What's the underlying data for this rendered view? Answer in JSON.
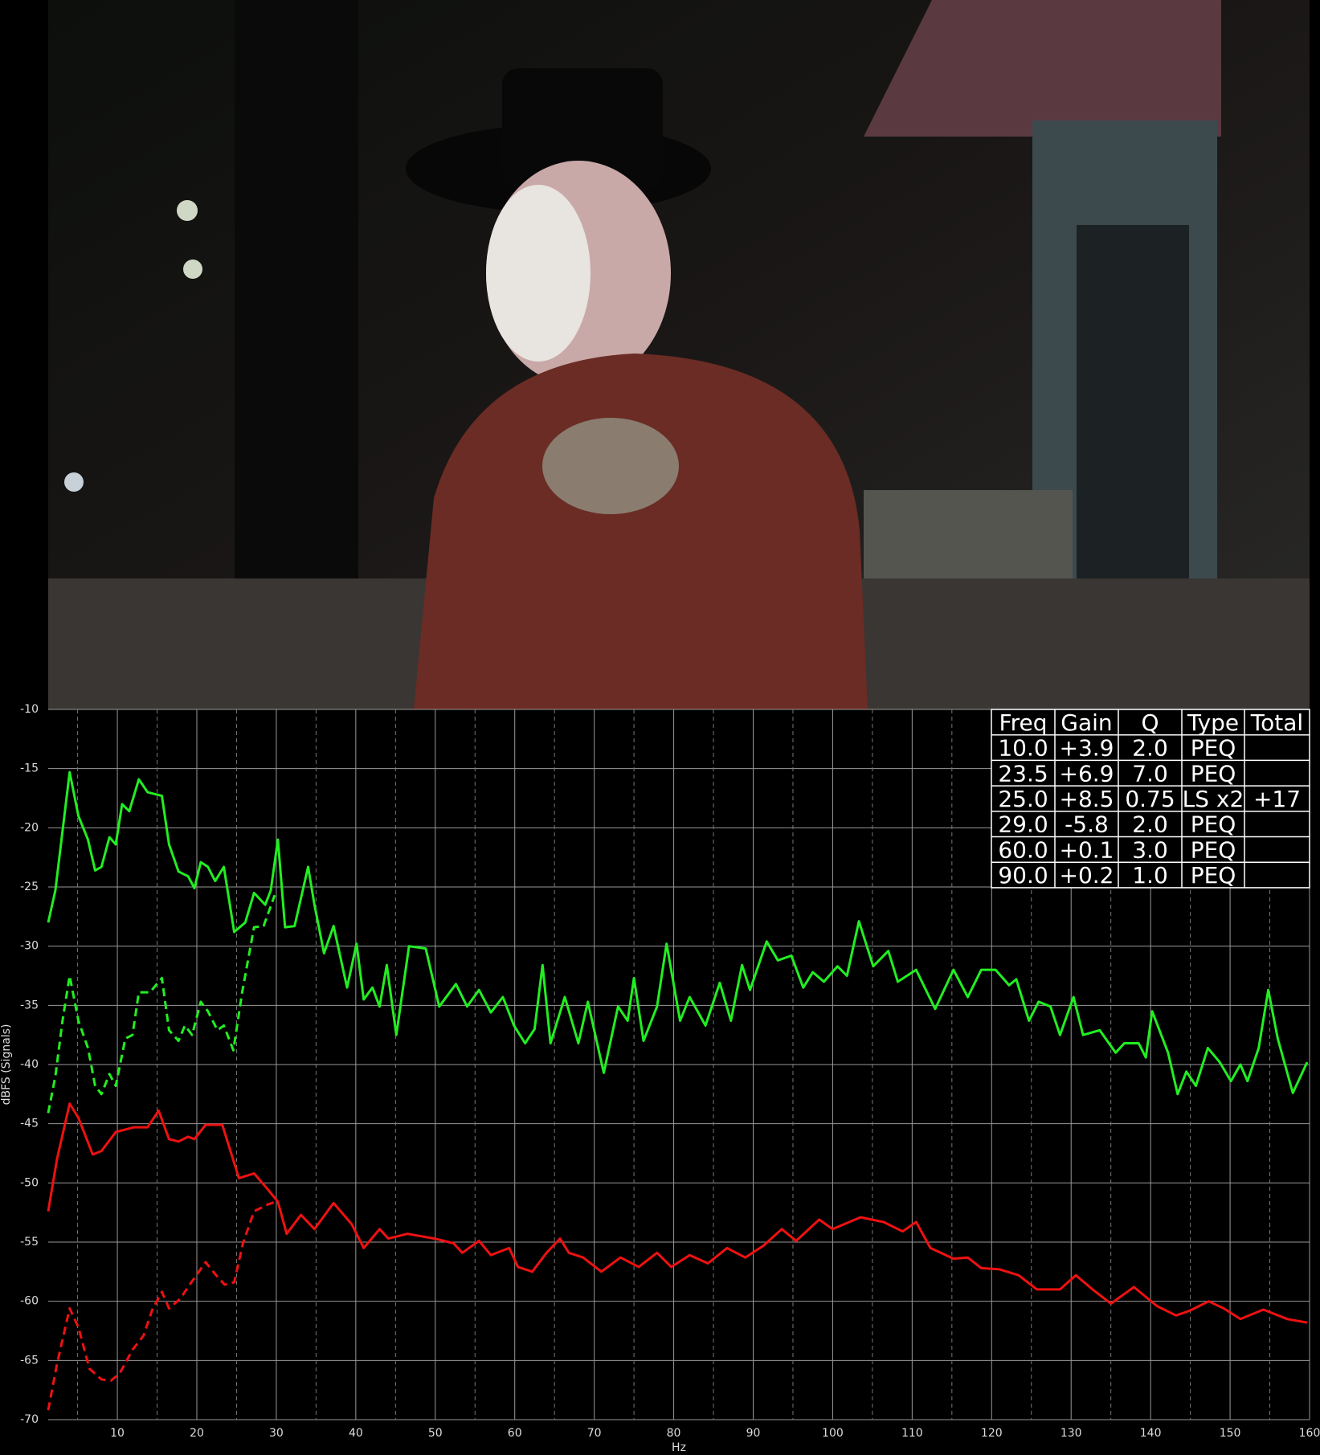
{
  "chart_data": {
    "type": "line",
    "xlabel": "Hz",
    "ylabel": "dBFS (Signals)",
    "xlim": [
      1.3,
      160
    ],
    "ylim": [
      -70,
      -10
    ],
    "xticks": [
      10,
      20,
      30,
      40,
      50,
      60,
      70,
      80,
      90,
      100,
      110,
      120,
      130,
      140,
      150,
      160
    ],
    "xminorticks": [
      5,
      15,
      25,
      35,
      45,
      55,
      65,
      75,
      85,
      95,
      105,
      115,
      125,
      135,
      145,
      155
    ],
    "yticks": [
      -70,
      -65,
      -60,
      -55,
      -50,
      -45,
      -40,
      -35,
      -30,
      -25,
      -20,
      -15,
      -10
    ],
    "grid": true,
    "series": [
      {
        "color": "#22ee22",
        "style": "solid",
        "x": [
          1.3,
          2.2,
          4.0,
          5.1,
          6.3,
          7.2,
          8.0,
          9.0,
          9.8,
          10.6,
          11.5,
          12.7,
          13.8,
          15.6,
          16.5,
          17.7,
          18.9,
          19.7,
          20.5,
          21.4,
          22.3,
          23.4,
          24.7,
          26.1,
          27.2,
          28.6,
          29.3,
          30.2,
          31.1,
          32.3,
          34.0,
          34.8,
          36.0,
          37.2,
          38.9,
          40.1,
          41.0,
          42.1,
          43.0,
          43.9,
          45.1,
          46.7,
          48.8,
          50.5,
          52.6,
          54.0,
          55.5,
          57.0,
          58.5,
          59.9,
          61.3,
          62.5,
          63.5,
          64.5,
          66.3,
          68.0,
          69.2,
          71.2,
          73.0,
          74.2,
          75.0,
          76.2,
          77.9,
          79.1,
          80.8,
          82.0,
          84.0,
          85.8,
          87.2,
          88.6,
          89.6,
          91.7,
          93.1,
          94.8,
          96.3,
          97.5,
          98.9,
          100.6,
          101.8,
          103.3,
          105.1,
          107.0,
          108.2,
          110.5,
          112.9,
          115.2,
          117.0,
          118.7,
          120.5,
          122.2,
          123.1,
          124.7,
          125.9,
          127.4,
          128.6,
          130.3,
          131.5,
          133.6,
          135.6,
          136.7,
          138.5,
          139.4,
          140.2,
          142.2,
          143.4,
          144.5,
          145.7,
          147.2,
          148.7,
          150.1,
          151.3,
          152.2,
          153.6,
          154.8,
          156.0,
          157.9,
          159.7
        ],
        "values": [
          -28,
          -25.3,
          -15.3,
          -19,
          -21,
          -23.6,
          -23.3,
          -20.8,
          -21.4,
          -18,
          -18.6,
          -15.9,
          -17,
          -17.3,
          -21.4,
          -23.7,
          -24.1,
          -25.1,
          -22.9,
          -23.3,
          -24.5,
          -23.3,
          -28.8,
          -28,
          -25.5,
          -26.5,
          -25.3,
          -21,
          -28.4,
          -28.3,
          -23.3,
          -26.5,
          -30.6,
          -28.3,
          -33.5,
          -29.8,
          -34.5,
          -33.5,
          -35.1,
          -31.6,
          -37.5,
          -30,
          -30.2,
          -35.1,
          -33.2,
          -35.1,
          -33.7,
          -35.6,
          -34.3,
          -36.7,
          -38.2,
          -37,
          -31.6,
          -38.2,
          -34.3,
          -38.2,
          -34.7,
          -40.7,
          -35.1,
          -36.3,
          -32.7,
          -38,
          -35.1,
          -29.8,
          -36.3,
          -34.3,
          -36.7,
          -33.1,
          -36.3,
          -31.6,
          -33.7,
          -29.6,
          -31.2,
          -30.8,
          -33.5,
          -32.2,
          -33,
          -31.7,
          -32.5,
          -27.9,
          -31.7,
          -30.4,
          -33,
          -32,
          -35.3,
          -32,
          -34.3,
          -32,
          -32,
          -33.3,
          -32.8,
          -36.3,
          -34.7,
          -35.1,
          -37.5,
          -34.3,
          -37.5,
          -37.1,
          -39,
          -38.2,
          -38.2,
          -39.4,
          -35.5,
          -39,
          -42.5,
          -40.6,
          -41.8,
          -38.6,
          -39.8,
          -41.4,
          -40,
          -41.4,
          -38.6,
          -33.7,
          -37.8,
          -42.4,
          -39.8
        ]
      },
      {
        "color": "#22ee22",
        "style": "dashed",
        "x": [
          1.3,
          2.2,
          3.1,
          4.0,
          5.1,
          6.3,
          7.2,
          8.0,
          9.0,
          9.8,
          11.0,
          11.9,
          12.7,
          14.1,
          15.6,
          16.5,
          17.7,
          18.5,
          19.4,
          20.5,
          21.4,
          22.6,
          23.4,
          24.6,
          25.7,
          27.2,
          28.4,
          29.8
        ],
        "values": [
          -44.1,
          -41,
          -36.3,
          -32.5,
          -36.3,
          -38.6,
          -41.8,
          -42.5,
          -40.8,
          -41.8,
          -37.8,
          -37.5,
          -33.9,
          -33.9,
          -32.7,
          -37.1,
          -38,
          -36.7,
          -37.5,
          -34.7,
          -35.5,
          -37.1,
          -36.7,
          -38.8,
          -33.9,
          -28.4,
          -28.3,
          -25.7
        ]
      },
      {
        "color": "#ee1111",
        "style": "solid",
        "x": [
          1.3,
          2.4,
          4.0,
          5.1,
          6.9,
          8.0,
          9.8,
          12.1,
          13.8,
          15.2,
          16.5,
          17.7,
          18.9,
          19.7,
          21.1,
          23.2,
          25.3,
          27.2,
          29.0,
          30.2,
          31.3,
          33.1,
          34.8,
          37.2,
          39.5,
          41.0,
          43.0,
          44.1,
          46.5,
          49.9,
          52.3,
          53.4,
          55.5,
          57.0,
          59.3,
          60.4,
          62.2,
          64.0,
          65.7,
          66.8,
          68.6,
          70.9,
          73.3,
          75.6,
          77.9,
          79.7,
          82.0,
          84.3,
          86.7,
          89.0,
          91.3,
          93.6,
          95.4,
          98.3,
          100.0,
          103.5,
          106.4,
          108.8,
          110.5,
          112.3,
          115.2,
          117.0,
          118.7,
          121.0,
          123.4,
          125.7,
          128.6,
          130.6,
          132.7,
          135.0,
          137.9,
          140.8,
          143.2,
          144.9,
          147.3,
          149.2,
          151.3,
          154.2,
          157.2,
          159.7
        ],
        "values": [
          -52.4,
          -48,
          -43.3,
          -44.5,
          -47.6,
          -47.3,
          -45.7,
          -45.3,
          -45.3,
          -43.9,
          -46.3,
          -46.5,
          -46.1,
          -46.3,
          -45.1,
          -45.1,
          -49.6,
          -49.2,
          -50.6,
          -51.6,
          -54.3,
          -52.7,
          -53.9,
          -51.7,
          -53.5,
          -55.5,
          -53.9,
          -54.7,
          -54.3,
          -54.7,
          -55.1,
          -55.9,
          -54.9,
          -56.1,
          -55.5,
          -57.1,
          -57.5,
          -55.9,
          -54.7,
          -55.9,
          -56.3,
          -57.5,
          -56.3,
          -57.1,
          -55.9,
          -57.1,
          -56.1,
          -56.8,
          -55.5,
          -56.3,
          -55.3,
          -53.9,
          -54.9,
          -53.1,
          -53.9,
          -52.9,
          -53.3,
          -54.1,
          -53.3,
          -55.5,
          -56.4,
          -56.3,
          -57.2,
          -57.3,
          -57.8,
          -59,
          -59,
          -57.8,
          -59,
          -60.2,
          -58.8,
          -60.4,
          -61.2,
          -60.8,
          -60,
          -60.6,
          -61.5,
          -60.7,
          -61.5,
          -61.8
        ]
      },
      {
        "color": "#ee1111",
        "style": "dashed",
        "x": [
          1.3,
          2.4,
          4.0,
          5.1,
          6.5,
          8.0,
          9.2,
          10.3,
          11.9,
          13.3,
          14.4,
          15.6,
          16.5,
          17.9,
          19.1,
          21.1,
          22.3,
          23.5,
          24.7,
          25.8,
          27.2,
          29.0,
          29.9
        ],
        "values": [
          -69.2,
          -65.3,
          -60.6,
          -62.2,
          -65.7,
          -66.6,
          -66.7,
          -66.1,
          -64.1,
          -62.9,
          -60.7,
          -59.2,
          -60.6,
          -59.8,
          -58.6,
          -56.7,
          -57.7,
          -58.6,
          -58.4,
          -55.1,
          -52.4,
          -51.8,
          -51.6
        ]
      }
    ]
  },
  "table": {
    "header": [
      "Freq",
      "Gain",
      "Q",
      "Type",
      "Total"
    ],
    "rows": [
      {
        "freq": "10.0",
        "gain": "+3.9",
        "q": "2.0",
        "type": "PEQ"
      },
      {
        "freq": "23.5",
        "gain": "+6.9",
        "q": "7.0",
        "type": "PEQ"
      },
      {
        "freq": "25.0",
        "gain": "+8.5",
        "q": "0.75",
        "type": "LS x2",
        "total": "+17"
      },
      {
        "freq": "29.0",
        "gain": "-5.8",
        "q": "2.0",
        "type": "PEQ"
      },
      {
        "freq": "60.0",
        "gain": "+0.1",
        "q": "3.0",
        "type": "PEQ"
      },
      {
        "freq": "90.0",
        "gain": "+0.2",
        "q": "1.0",
        "type": "PEQ"
      }
    ]
  }
}
